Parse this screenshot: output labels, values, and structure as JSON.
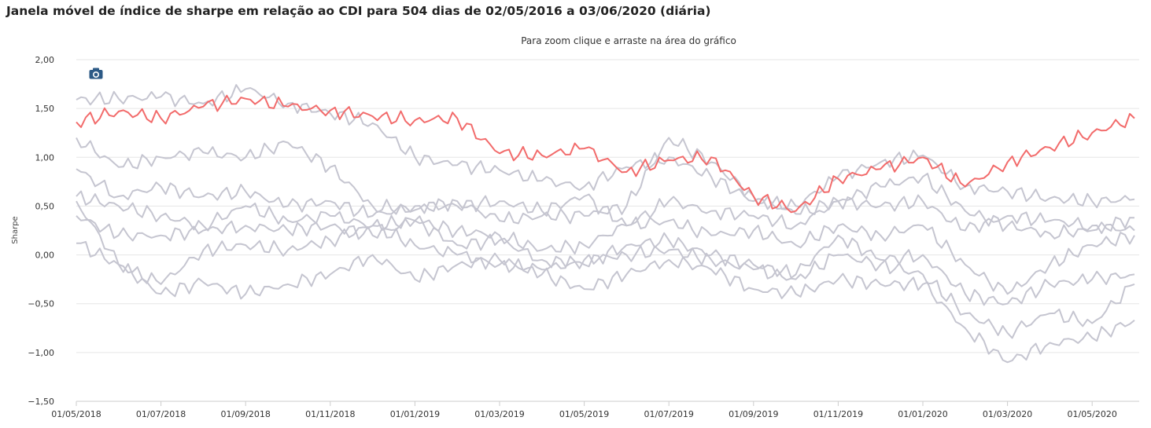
{
  "chart_data": {
    "type": "line",
    "title": "Janela móvel de índice de sharpe em relação ao CDI para 504 dias de 02/05/2016 a 03/06/2020 (diária)",
    "subtitle": "Para zoom clique e arraste na área do gráfico",
    "ylabel": "Sharpe",
    "ylim": [
      -1.5,
      2.0
    ],
    "yticks": [
      "2,00",
      "1,50",
      "1,00",
      "0,50",
      "0,00",
      "−0,50",
      "−1,00",
      "−1,50"
    ],
    "xticks": [
      "01/05/2018",
      "01/07/2018",
      "01/09/2018",
      "01/11/2018",
      "01/01/2019",
      "01/03/2019",
      "01/05/2019",
      "01/07/2019",
      "01/09/2019",
      "01/11/2019",
      "01/01/2020",
      "01/03/2020",
      "01/05/2020"
    ],
    "x": [
      "01/05/2018",
      "01/06/2018",
      "01/07/2018",
      "01/08/2018",
      "01/09/2018",
      "01/10/2018",
      "01/11/2018",
      "01/12/2018",
      "01/01/2019",
      "01/02/2019",
      "01/03/2019",
      "01/04/2019",
      "01/05/2019",
      "01/06/2019",
      "01/07/2019",
      "01/08/2019",
      "01/09/2019",
      "01/10/2019",
      "01/11/2019",
      "01/12/2019",
      "01/01/2020",
      "01/02/2020",
      "01/03/2020",
      "01/04/2020",
      "01/05/2020",
      "01/06/2020"
    ],
    "grid": true,
    "legend": "none",
    "colors": {
      "highlight": "#f26b6b",
      "others": "#c5c5d0"
    },
    "series": [
      {
        "highlight": true,
        "values": [
          1.36,
          1.47,
          1.4,
          1.52,
          1.6,
          1.52,
          1.48,
          1.42,
          1.38,
          1.4,
          1.04,
          1.02,
          1.09,
          0.85,
          0.97,
          1.0,
          0.6,
          0.45,
          0.78,
          0.88,
          1.0,
          0.7,
          0.95,
          1.1,
          1.25,
          1.4
        ]
      },
      {
        "highlight": false,
        "values": [
          1.59,
          1.6,
          1.62,
          1.55,
          1.7,
          1.55,
          1.45,
          1.35,
          1.0,
          0.92,
          0.87,
          0.76,
          0.7,
          0.9,
          1.0,
          0.8,
          0.55,
          0.5,
          0.8,
          0.95,
          1.02,
          0.7,
          0.65,
          0.58,
          0.55,
          0.57
        ]
      },
      {
        "highlight": false,
        "values": [
          1.2,
          0.9,
          1.0,
          1.05,
          1.0,
          1.15,
          0.9,
          0.5,
          0.46,
          0.55,
          0.35,
          0.4,
          0.4,
          0.5,
          1.2,
          0.95,
          0.6,
          0.42,
          0.55,
          0.7,
          0.8,
          0.45,
          0.3,
          0.22,
          0.25,
          0.38
        ]
      },
      {
        "highlight": false,
        "values": [
          0.88,
          0.6,
          0.7,
          0.6,
          0.65,
          0.5,
          0.55,
          0.4,
          0.5,
          0.5,
          0.55,
          0.45,
          0.6,
          0.3,
          0.55,
          0.45,
          0.4,
          0.3,
          0.55,
          0.5,
          0.55,
          0.25,
          0.4,
          0.35,
          0.3,
          0.25
        ]
      },
      {
        "highlight": false,
        "values": [
          0.6,
          0.5,
          0.4,
          0.3,
          0.5,
          0.35,
          0.4,
          0.3,
          0.35,
          0.25,
          0.2,
          0.05,
          0.1,
          0.3,
          0.35,
          0.2,
          0.25,
          0.1,
          0.3,
          0.2,
          0.3,
          -0.1,
          -0.4,
          -0.1,
          0.1,
          0.2
        ]
      },
      {
        "highlight": false,
        "values": [
          0.4,
          0.2,
          0.2,
          0.25,
          0.3,
          0.25,
          0.3,
          0.2,
          0.35,
          0.1,
          0.15,
          -0.05,
          -0.1,
          0.1,
          0.15,
          0.0,
          -0.1,
          -0.2,
          0.2,
          -0.05,
          0.0,
          -0.4,
          -0.5,
          -0.3,
          -0.25,
          -0.2
        ]
      },
      {
        "highlight": false,
        "values": [
          0.12,
          -0.1,
          -0.3,
          0.05,
          0.1,
          0.05,
          0.15,
          0.3,
          0.1,
          0.0,
          -0.1,
          -0.15,
          -0.05,
          0.0,
          0.05,
          -0.05,
          -0.15,
          -0.25,
          0.0,
          -0.1,
          -0.2,
          -0.6,
          -0.8,
          -0.6,
          -0.7,
          -0.3
        ]
      },
      {
        "highlight": false,
        "values": [
          0.55,
          -0.1,
          -0.4,
          -0.28,
          -0.4,
          -0.3,
          -0.2,
          0.0,
          -0.25,
          -0.1,
          -0.05,
          -0.2,
          -0.35,
          -0.2,
          -0.05,
          -0.15,
          -0.35,
          -0.4,
          -0.25,
          -0.3,
          -0.3,
          -0.75,
          -1.1,
          -0.9,
          -0.85,
          -0.67
        ]
      }
    ]
  },
  "toolbar": {
    "camera_icon": "camera-icon"
  }
}
